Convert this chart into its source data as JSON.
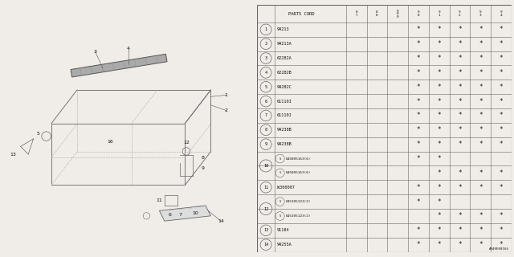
{
  "watermark": "A940E00166",
  "rows": [
    {
      "num": 1,
      "part": "94213",
      "stars": [
        0,
        0,
        0,
        1,
        1,
        1,
        1,
        1
      ],
      "double": false,
      "sub_part": null
    },
    {
      "num": 2,
      "part": "94213A",
      "stars": [
        0,
        0,
        0,
        1,
        1,
        1,
        1,
        1
      ],
      "double": false,
      "sub_part": null
    },
    {
      "num": 3,
      "part": "62282A",
      "stars": [
        0,
        0,
        0,
        1,
        1,
        1,
        1,
        1
      ],
      "double": false,
      "sub_part": null
    },
    {
      "num": 4,
      "part": "62282B",
      "stars": [
        0,
        0,
        0,
        1,
        1,
        1,
        1,
        1
      ],
      "double": false,
      "sub_part": null
    },
    {
      "num": 5,
      "part": "94282C",
      "stars": [
        0,
        0,
        0,
        1,
        1,
        1,
        1,
        1
      ],
      "double": false,
      "sub_part": null
    },
    {
      "num": 6,
      "part": "61110I",
      "stars": [
        0,
        0,
        0,
        1,
        1,
        1,
        1,
        1
      ],
      "double": false,
      "sub_part": null
    },
    {
      "num": 7,
      "part": "61110J",
      "stars": [
        0,
        0,
        0,
        1,
        1,
        1,
        1,
        1
      ],
      "double": false,
      "sub_part": null
    },
    {
      "num": 8,
      "part": "94238B",
      "stars": [
        0,
        0,
        0,
        1,
        1,
        1,
        1,
        1
      ],
      "double": false,
      "sub_part": null
    },
    {
      "num": 9,
      "part": "94238B",
      "stars": [
        0,
        0,
        0,
        1,
        1,
        1,
        1,
        1
      ],
      "double": false,
      "sub_part": null
    },
    {
      "num": 10,
      "part": "045005163(6)",
      "stars_a": [
        0,
        0,
        0,
        1,
        1,
        0,
        0,
        0
      ],
      "stars_b": [
        0,
        0,
        0,
        0,
        1,
        1,
        1,
        1
      ],
      "double": true,
      "sub_part": "045005163(6)"
    },
    {
      "num": 11,
      "part": "W300007",
      "stars": [
        0,
        0,
        0,
        1,
        1,
        1,
        1,
        1
      ],
      "double": false,
      "sub_part": null
    },
    {
      "num": 12,
      "part": "045105123(2)",
      "stars_a": [
        0,
        0,
        0,
        1,
        1,
        0,
        0,
        0
      ],
      "stars_b": [
        0,
        0,
        0,
        0,
        1,
        1,
        1,
        1
      ],
      "double": true,
      "sub_part": "045105123(2)"
    },
    {
      "num": 13,
      "part": "91184",
      "stars": [
        0,
        0,
        0,
        1,
        1,
        1,
        1,
        1
      ],
      "double": false,
      "sub_part": null
    },
    {
      "num": 14,
      "part": "94255A",
      "stars": [
        0,
        0,
        0,
        1,
        1,
        1,
        1,
        1
      ],
      "double": false,
      "sub_part": null
    }
  ],
  "year_headers": [
    "8\n7",
    "8\n8",
    "9\n0\n0",
    "9\n0",
    "9\n1",
    "9\n2",
    "9\n3",
    "9\n4"
  ],
  "bg_color": "#f0ede8",
  "line_color": "#666666",
  "text_color": "#111111"
}
